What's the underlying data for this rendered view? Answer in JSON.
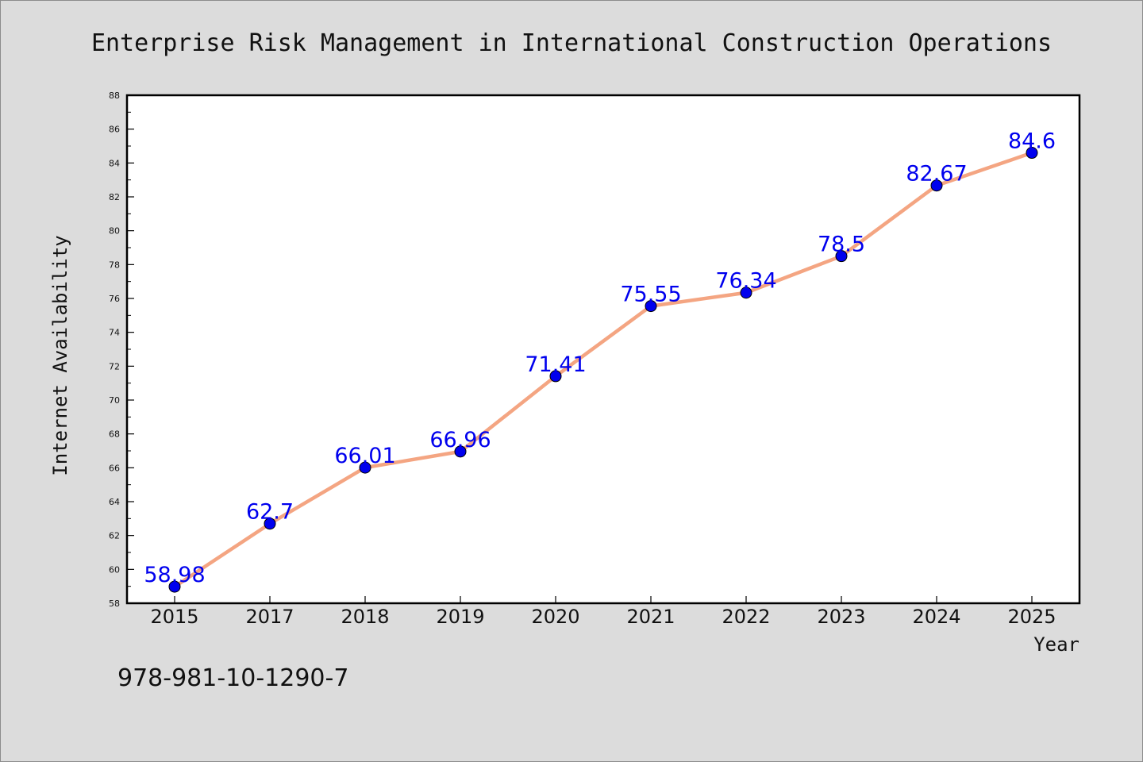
{
  "chart_data": {
    "type": "line",
    "title": "Enterprise Risk Management in International Construction Operations",
    "xlabel": "Year",
    "ylabel": "Internet Availability",
    "categories": [
      "2015",
      "2017",
      "2018",
      "2019",
      "2020",
      "2021",
      "2022",
      "2023",
      "2024",
      "2025"
    ],
    "values": [
      58.98,
      62.7,
      66.01,
      66.96,
      71.41,
      75.55,
      76.34,
      78.5,
      82.67,
      84.6
    ],
    "data_labels": [
      "58.98",
      "62.7",
      "66.01",
      "66.96",
      "71.41",
      "75.55",
      "76.34",
      "78.5",
      "82.67",
      "84.6"
    ],
    "ylim": [
      58,
      88
    ],
    "yticks": [
      58,
      60,
      62,
      64,
      66,
      68,
      70,
      72,
      74,
      76,
      78,
      80,
      82,
      84,
      86,
      88
    ],
    "grid": false,
    "legend": "none",
    "line_color": "#f4a582",
    "marker_color": "#0000ee",
    "label_color": "#0000ee",
    "plot_background": "#ffffff",
    "figure_background": "#dcdcdc"
  },
  "footer": {
    "isbn": "978-981-10-1290-7"
  }
}
